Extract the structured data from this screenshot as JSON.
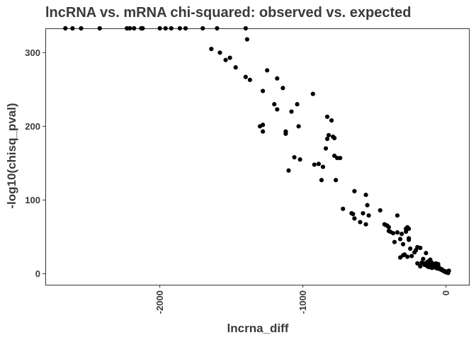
{
  "chart_data": {
    "type": "scatter",
    "title": "lncRNA vs. mRNA chi-squared: observed vs. expected",
    "xlabel": "lncrna_diff",
    "ylabel": "-log10(chisq_pval)",
    "xlim": [
      -2800,
      160
    ],
    "ylim": [
      -15,
      333
    ],
    "x_ticks": [
      {
        "value": -2000,
        "label": "-2000"
      },
      {
        "value": -1000,
        "label": "-1000"
      },
      {
        "value": 0,
        "label": "0"
      }
    ],
    "y_ticks": [
      {
        "value": 0,
        "label": "0"
      },
      {
        "value": 100,
        "label": "100"
      },
      {
        "value": 200,
        "label": "200"
      },
      {
        "value": 300,
        "label": "300"
      }
    ],
    "grid": false,
    "point_color": "#000000",
    "x": [
      -2660,
      -2610,
      -2550,
      -2420,
      -2230,
      -2210,
      -2180,
      -2130,
      -2120,
      -2000,
      -1960,
      -1920,
      -1860,
      -1820,
      -1700,
      -1600,
      -1400,
      -1640,
      -1580,
      -1540,
      -1510,
      -1470,
      -1400,
      -1370,
      -1390,
      -1180,
      -1140,
      -1280,
      -1280,
      -1200,
      -1180,
      -1250,
      -1280,
      -1300,
      -1120,
      -1080,
      -1040,
      -1120,
      -930,
      -830,
      -800,
      -820,
      -790,
      -780,
      -830,
      -840,
      -1030,
      -1020,
      -1100,
      -1060,
      -920,
      -890,
      -780,
      -760,
      -740,
      -770,
      -870,
      -860,
      -640,
      -560,
      -580,
      -540,
      -550,
      -460,
      -720,
      -650,
      -640,
      -600,
      -660,
      -560,
      -430,
      -420,
      -410,
      -400,
      -390,
      -370,
      -340,
      -310,
      -280,
      -270,
      -260,
      -260,
      -400,
      -360,
      -320,
      -300,
      -280,
      -260,
      -340,
      -300,
      -250,
      -200,
      -180,
      -320,
      -290,
      -270,
      -240,
      -220,
      -210,
      -200,
      -170,
      -150,
      -140,
      -130,
      -120,
      -110,
      -100,
      -90,
      -80,
      -70,
      -60,
      -50,
      -40,
      -30,
      -20,
      -10,
      0,
      10,
      20,
      -160,
      -140,
      -120,
      -100,
      -90,
      -80,
      -60,
      -50,
      -40,
      -30,
      -20,
      -10,
      0,
      -180,
      -150,
      -130,
      -110,
      -95,
      -70,
      -55,
      -45,
      -35,
      -25,
      -15,
      -5,
      5,
      15
    ],
    "y": [
      333,
      333,
      333,
      333,
      333,
      333,
      333,
      333,
      333,
      333,
      333,
      333,
      333,
      333,
      333,
      333,
      333,
      305,
      300,
      290,
      293,
      280,
      267,
      263,
      318,
      265,
      252,
      248,
      202,
      230,
      223,
      276,
      193,
      200,
      193,
      220,
      230,
      190,
      244,
      213,
      208,
      188,
      186,
      184,
      183,
      170,
      200,
      155,
      140,
      158,
      148,
      149,
      160,
      157,
      157,
      127,
      127,
      145,
      112,
      107,
      82,
      79,
      93,
      86,
      88,
      81,
      75,
      70,
      82,
      67,
      67,
      66,
      65,
      63,
      57,
      55,
      56,
      54,
      57,
      63,
      61,
      48,
      58,
      43,
      47,
      40,
      61,
      46,
      79,
      25,
      34,
      36,
      35,
      22,
      26,
      23,
      24,
      29,
      32,
      14,
      15,
      14,
      12,
      10,
      9,
      12,
      8,
      11,
      10,
      8,
      7,
      7,
      6,
      6,
      4,
      3,
      2,
      3,
      4,
      20,
      28,
      17,
      15,
      13,
      10,
      11,
      9,
      6,
      5,
      4,
      3,
      2,
      10,
      12,
      16,
      19,
      8,
      14,
      13,
      7,
      6,
      5,
      4,
      3,
      2,
      1
    ]
  }
}
